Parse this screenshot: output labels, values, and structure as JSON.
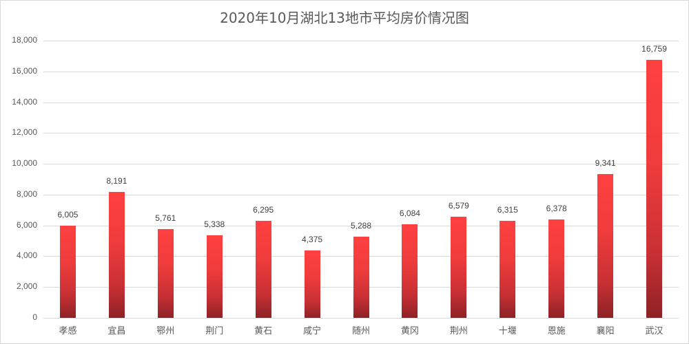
{
  "chart_data": {
    "type": "bar",
    "title": "2020年10月湖北13地市平均房价情况图",
    "xlabel": "",
    "ylabel": "",
    "ylim": [
      0,
      18000
    ],
    "yticks": [
      "0",
      "2,000",
      "4,000",
      "6,000",
      "8,000",
      "10,000",
      "12,000",
      "14,000",
      "16,000",
      "18,000"
    ],
    "grid": true,
    "legend": "none",
    "categories": [
      "孝感",
      "宜昌",
      "鄂州",
      "荆门",
      "黄石",
      "咸宁",
      "随州",
      "黄冈",
      "荆州",
      "十堰",
      "恩施",
      "襄阳",
      "武汉"
    ],
    "values": [
      6005,
      8191,
      5761,
      5338,
      6295,
      4375,
      5288,
      6084,
      6579,
      6315,
      6378,
      9341,
      16759
    ],
    "value_labels": [
      "6,005",
      "8,191",
      "5,761",
      "5,338",
      "6,295",
      "4,375",
      "5,288",
      "6,084",
      "6,579",
      "6,315",
      "6,378",
      "9,341",
      "16,759"
    ],
    "bar_color_top": "#ff4040",
    "bar_color_bottom": "#8e2226"
  }
}
